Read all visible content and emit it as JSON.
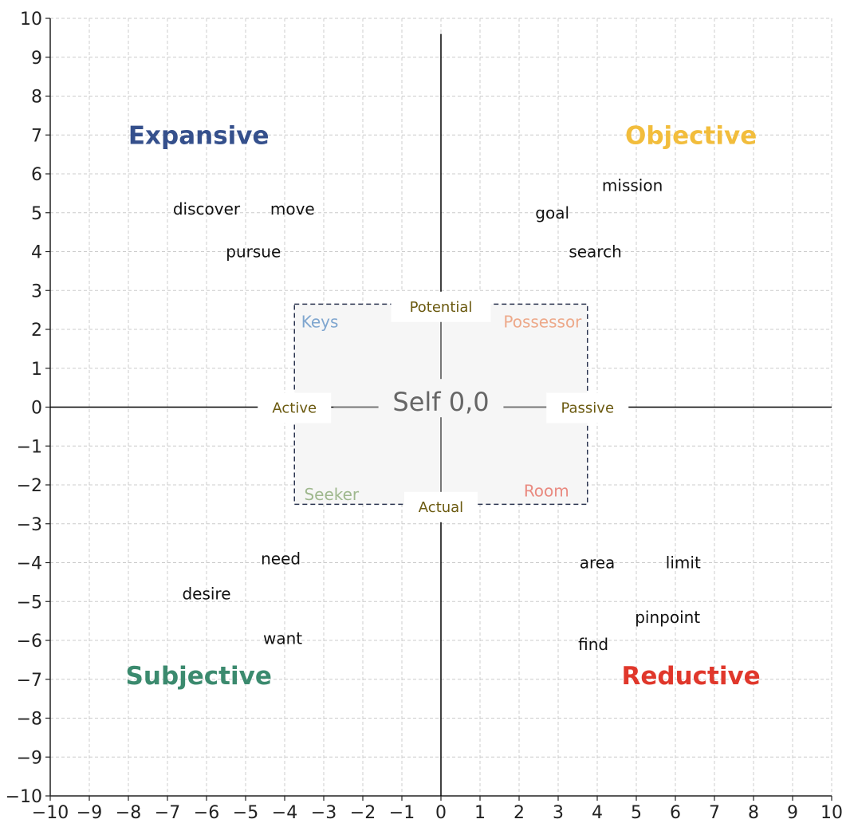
{
  "chart_data": {
    "type": "scatter",
    "title": "",
    "xlabel": "",
    "ylabel": "",
    "xlim": [
      -10,
      10
    ],
    "ylim": [
      -10,
      10
    ],
    "grid": true,
    "x_ticks": [
      "−10",
      "−9",
      "−8",
      "−7",
      "−6",
      "−5",
      "−4",
      "−3",
      "−2",
      "−1",
      "0",
      "1",
      "2",
      "3",
      "4",
      "5",
      "6",
      "7",
      "8",
      "9",
      "10"
    ],
    "y_ticks": [
      "10",
      "9",
      "8",
      "7",
      "6",
      "5",
      "4",
      "3",
      "2",
      "1",
      "0",
      "−1",
      "−2",
      "−3",
      "−4",
      "−5",
      "−6",
      "−7",
      "−8",
      "−9",
      "−10"
    ],
    "quadrant_titles": [
      {
        "text": "Expansive",
        "x": -6.2,
        "y": 7.0,
        "color": "#35508c"
      },
      {
        "text": "Objective",
        "x": 6.4,
        "y": 7.0,
        "color": "#f2bd3c"
      },
      {
        "text": "Subjective",
        "x": -6.2,
        "y": -6.9,
        "color": "#3b8a6e"
      },
      {
        "text": "Reductive",
        "x": 6.4,
        "y": -6.9,
        "color": "#e0372b"
      }
    ],
    "words": [
      {
        "text": "discover",
        "x": -6.0,
        "y": 5.1
      },
      {
        "text": "move",
        "x": -3.8,
        "y": 5.1
      },
      {
        "text": "pursue",
        "x": -4.8,
        "y": 4.0
      },
      {
        "text": "mission",
        "x": 4.9,
        "y": 5.7
      },
      {
        "text": "goal",
        "x": 2.85,
        "y": 5.0
      },
      {
        "text": "search",
        "x": 3.95,
        "y": 4.0
      },
      {
        "text": "need",
        "x": -4.1,
        "y": -3.9
      },
      {
        "text": "desire",
        "x": -6.0,
        "y": -4.8
      },
      {
        "text": "want",
        "x": -4.05,
        "y": -5.95
      },
      {
        "text": "area",
        "x": 4.0,
        "y": -4.0
      },
      {
        "text": "limit",
        "x": 6.2,
        "y": -4.0
      },
      {
        "text": "pinpoint",
        "x": 5.8,
        "y": -5.4
      },
      {
        "text": "find",
        "x": 3.9,
        "y": -6.1
      }
    ],
    "center_box": {
      "x_range": [
        -3.75,
        3.75
      ],
      "y_range": [
        -2.5,
        2.65
      ],
      "fill": "#f6f6f6",
      "border": "#2c3550"
    },
    "center_label": {
      "text": "Self 0,0",
      "x": 0,
      "y": 0.15
    },
    "axis_labels": [
      {
        "text": "Potential",
        "x": 0,
        "y": 2.6
      },
      {
        "text": "Actual",
        "x": 0,
        "y": -2.55
      },
      {
        "text": "Active",
        "x": -3.75,
        "y": 0.0
      },
      {
        "text": "Passive",
        "x": 3.75,
        "y": 0.0
      }
    ],
    "corner_labels": [
      {
        "text": "Keys",
        "x": -3.1,
        "y": 2.2,
        "color": "#7fa6cf"
      },
      {
        "text": "Possessor",
        "x": 2.6,
        "y": 2.2,
        "color": "#eda98a"
      },
      {
        "text": "Seeker",
        "x": -2.8,
        "y": -2.25,
        "color": "#9fb88e"
      },
      {
        "text": "Room",
        "x": 2.7,
        "y": -2.15,
        "color": "#e98a80"
      }
    ]
  }
}
